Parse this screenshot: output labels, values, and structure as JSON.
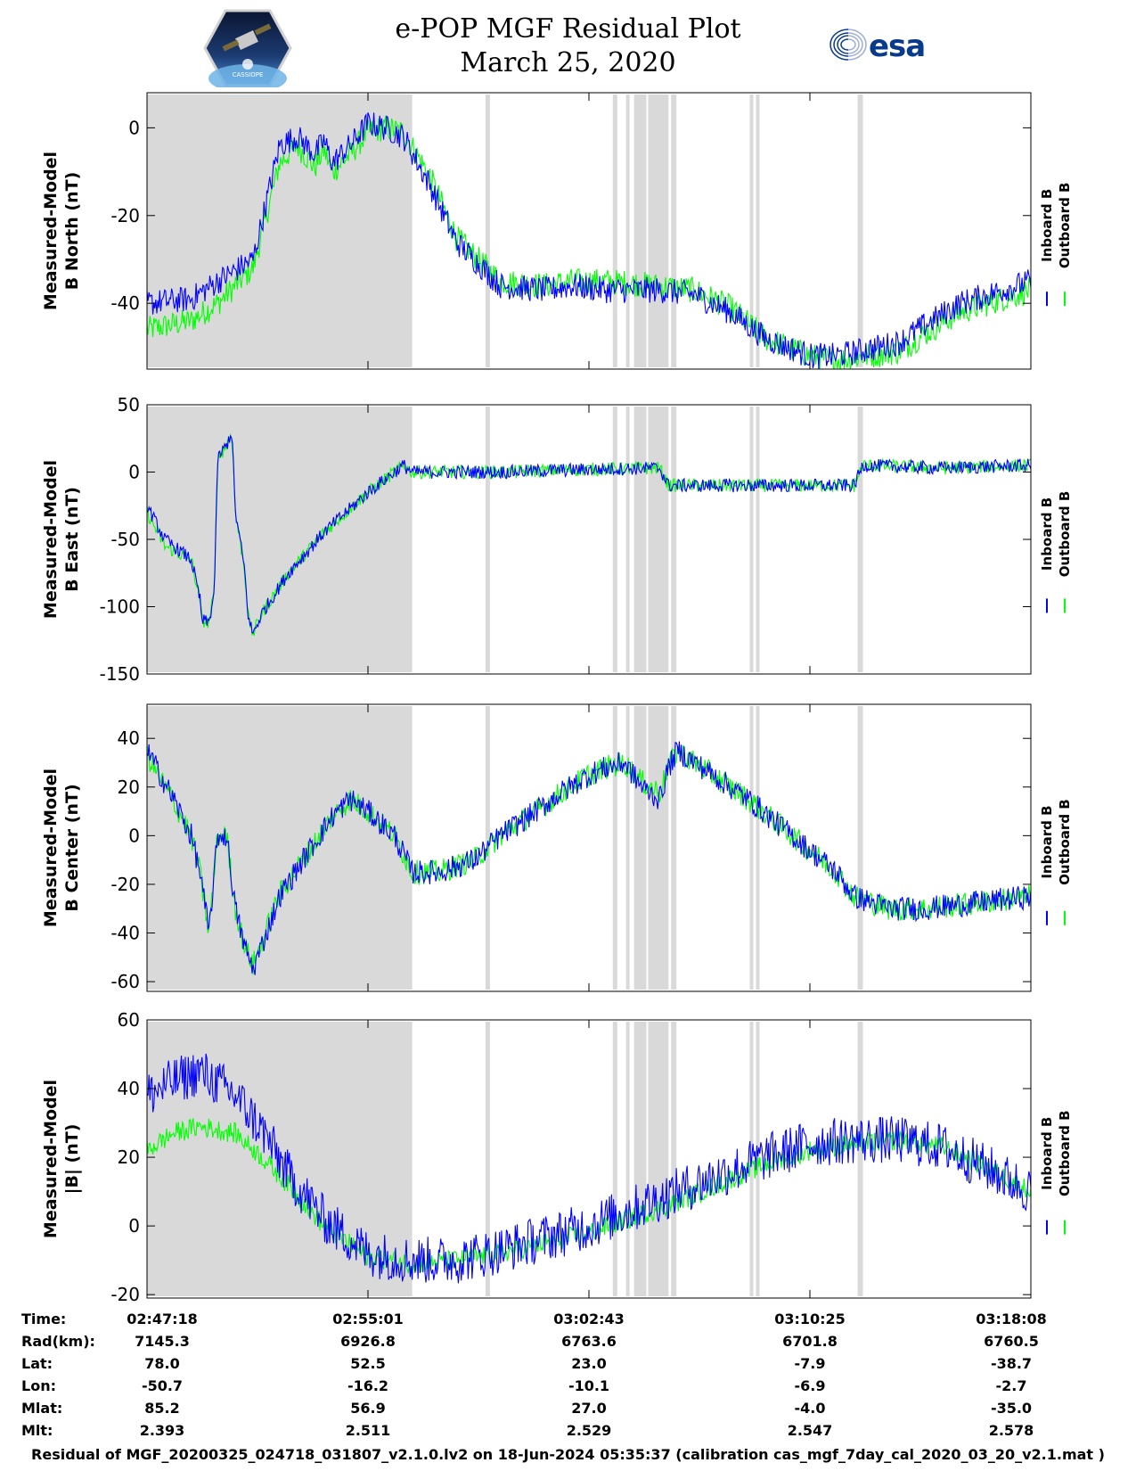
{
  "header": {
    "title_line1": "e-POP MGF Residual Plot",
    "title_line2": "March 25, 2020",
    "left_logo_text": "CASSIOPE",
    "right_logo_text": "esa",
    "right_logo_icon": "e-swirl-icon"
  },
  "colors": {
    "inboard": "#0000ff",
    "outboard": "#00ff00",
    "gap_shade": "#d9d9d9"
  },
  "chart_data": [
    {
      "type": "line",
      "title": "",
      "ylabel_line1": "Measured-Model",
      "ylabel_line2": "B North (nT)",
      "ylim": [
        -55,
        8
      ],
      "yticks": [
        0,
        -20,
        -40
      ],
      "ytick_labels": [
        "0",
        "-20",
        "-40"
      ],
      "legend": [
        "Inboard B",
        "Outboard B"
      ],
      "series": [
        {
          "name": "Inboard B",
          "x": [
            0,
            5,
            8,
            12,
            15,
            17,
            19,
            20,
            21,
            23,
            25,
            27,
            29,
            32,
            35,
            40,
            45,
            48,
            52,
            58,
            62,
            66,
            70,
            75,
            78,
            85,
            88,
            92,
            100
          ],
          "values": [
            -40,
            -39,
            -35,
            -30,
            -4,
            -2,
            -6,
            -3,
            -8,
            -4,
            1,
            0,
            -2,
            -13,
            -26,
            -36,
            -37,
            -36,
            -37,
            -37,
            -38,
            -42,
            -48,
            -52,
            -52,
            -49,
            -45,
            -40,
            -35
          ],
          "noise": 3
        },
        {
          "name": "Outboard B",
          "x": [
            0,
            5,
            8,
            12,
            15,
            17,
            19,
            20,
            21,
            23,
            25,
            27,
            29,
            32,
            35,
            40,
            45,
            48,
            52,
            58,
            62,
            66,
            70,
            75,
            78,
            85,
            88,
            92,
            100
          ],
          "values": [
            -46,
            -44,
            -40,
            -32,
            -8,
            -4,
            -9,
            -5,
            -10,
            -6,
            -1,
            0,
            -1,
            -11,
            -25,
            -35,
            -36,
            -35,
            -35,
            -36,
            -37,
            -41,
            -48,
            -52,
            -53,
            -51,
            -47,
            -42,
            -37
          ],
          "noise": 3
        }
      ]
    },
    {
      "type": "line",
      "title": "",
      "ylabel_line1": "Measured-Model",
      "ylabel_line2": "B East (nT)",
      "ylim": [
        -150,
        50
      ],
      "yticks": [
        50,
        0,
        -50,
        -100,
        -150
      ],
      "ytick_labels": [
        "50",
        "0",
        "-50",
        "-100",
        "-150"
      ],
      "legend": [
        "Inboard B",
        "Outboard B"
      ],
      "series": [
        {
          "name": "Inboard B",
          "x": [
            0,
            2,
            4,
            5,
            6,
            6.2,
            7,
            7.6,
            8,
            9,
            9.6,
            10,
            11,
            11.5,
            12,
            13,
            16,
            20,
            25,
            29,
            30,
            35,
            40,
            50,
            58,
            59,
            61,
            70,
            80,
            81,
            90,
            100
          ],
          "values": [
            -25,
            -50,
            -60,
            -65,
            -95,
            -110,
            -112,
            -90,
            10,
            20,
            30,
            -30,
            -70,
            -110,
            -120,
            -105,
            -75,
            -45,
            -15,
            5,
            0,
            0,
            0,
            2,
            3,
            -10,
            -10,
            -10,
            -10,
            5,
            3,
            5
          ],
          "noise": 5
        },
        {
          "name": "Outboard B",
          "x": [
            0,
            2,
            4,
            5,
            6,
            6.2,
            7,
            7.6,
            8,
            9,
            9.6,
            10,
            11,
            11.5,
            12,
            13,
            16,
            20,
            25,
            29,
            30,
            35,
            40,
            50,
            58,
            59,
            61,
            70,
            80,
            81,
            90,
            100
          ],
          "values": [
            -30,
            -55,
            -62,
            -65,
            -95,
            -110,
            -112,
            -90,
            10,
            20,
            30,
            -30,
            -70,
            -110,
            -120,
            -105,
            -75,
            -45,
            -15,
            5,
            0,
            0,
            0,
            2,
            3,
            -10,
            -10,
            -10,
            -10,
            5,
            3,
            5
          ],
          "noise": 5
        }
      ]
    },
    {
      "type": "line",
      "title": "",
      "ylabel_line1": "Measured-Model",
      "ylabel_line2": "B Center (nT)",
      "ylim": [
        -64,
        54
      ],
      "yticks": [
        40,
        20,
        0,
        -20,
        -40,
        -60
      ],
      "ytick_labels": [
        "40",
        "20",
        "0",
        "-20",
        "-40",
        "-60"
      ],
      "legend": [
        "Inboard B",
        "Outboard B"
      ],
      "series": [
        {
          "name": "Inboard B",
          "x": [
            0,
            3,
            5,
            6,
            7,
            8,
            9,
            10,
            11,
            12,
            13,
            15,
            18,
            21,
            23,
            25,
            28,
            30,
            33,
            37,
            40,
            44,
            47,
            50,
            52,
            54,
            56,
            58,
            59,
            60,
            62,
            68,
            73,
            78,
            80,
            84,
            88,
            93,
            100
          ],
          "values": [
            35,
            15,
            0,
            -15,
            -40,
            0,
            0,
            -30,
            -45,
            -55,
            -45,
            -25,
            -8,
            8,
            15,
            10,
            0,
            -15,
            -15,
            -10,
            0,
            10,
            18,
            25,
            28,
            30,
            20,
            15,
            28,
            35,
            30,
            15,
            0,
            -15,
            -25,
            -30,
            -30,
            -28,
            -25
          ],
          "noise": 5
        },
        {
          "name": "Outboard B",
          "x": [
            0,
            3,
            5,
            6,
            7,
            8,
            9,
            10,
            11,
            12,
            13,
            15,
            18,
            21,
            23,
            25,
            28,
            30,
            33,
            37,
            40,
            44,
            47,
            50,
            52,
            54,
            56,
            58,
            59,
            60,
            62,
            68,
            73,
            78,
            80,
            84,
            88,
            93,
            100
          ],
          "values": [
            33,
            14,
            0,
            -15,
            -40,
            0,
            0,
            -30,
            -45,
            -53,
            -44,
            -24,
            -8,
            8,
            15,
            10,
            0,
            -15,
            -15,
            -10,
            0,
            10,
            18,
            25,
            28,
            30,
            22,
            18,
            28,
            35,
            30,
            15,
            0,
            -15,
            -25,
            -30,
            -30,
            -28,
            -25
          ],
          "noise": 5
        }
      ]
    },
    {
      "type": "line",
      "title": "",
      "ylabel_line1": "Measured-Model",
      "ylabel_line2": "|B| (nT)",
      "ylim": [
        -21,
        60
      ],
      "yticks": [
        60,
        40,
        20,
        0,
        -20
      ],
      "ytick_labels": [
        "60",
        "40",
        "20",
        "0",
        "-20"
      ],
      "legend": [
        "Inboard B",
        "Outboard B"
      ],
      "series": [
        {
          "name": "Inboard B",
          "x": [
            0,
            3,
            6,
            10,
            13,
            16,
            20,
            25,
            30,
            35,
            40,
            50,
            60,
            70,
            75,
            80,
            85,
            90,
            95,
            100
          ],
          "values": [
            38,
            42,
            45,
            38,
            28,
            15,
            2,
            -8,
            -10,
            -10,
            -7,
            0,
            10,
            20,
            24,
            25,
            25,
            23,
            17,
            10
          ],
          "noise": 7
        },
        {
          "name": "Outboard B",
          "x": [
            0,
            3,
            6,
            10,
            13,
            16,
            20,
            25,
            30,
            35,
            40,
            50,
            60,
            70,
            75,
            80,
            85,
            90,
            95,
            100
          ],
          "values": [
            22,
            27,
            29,
            27,
            20,
            12,
            0,
            -9,
            -11,
            -10,
            -8,
            -2,
            7,
            18,
            22,
            24,
            25,
            23,
            17,
            10
          ],
          "noise": 3
        }
      ]
    }
  ],
  "gap_bands_percent": [
    [
      0,
      30
    ],
    [
      38.3,
      38.8
    ],
    [
      52.7,
      53.2
    ],
    [
      54.2,
      54.6
    ],
    [
      55.1,
      56.5
    ],
    [
      56.7,
      59.0
    ],
    [
      59.3,
      59.9
    ],
    [
      68.2,
      68.6
    ],
    [
      68.9,
      69.3
    ],
    [
      80.4,
      81.0
    ]
  ],
  "ephemeris": {
    "labels": [
      "Time:",
      "Rad(km):",
      "Lat:",
      "Lon:",
      "Mlat:",
      "Mlt:"
    ],
    "columns": [
      [
        "02:47:18",
        "7145.3",
        "78.0",
        "-50.7",
        "85.2",
        "2.393"
      ],
      [
        "02:55:01",
        "6926.8",
        "52.5",
        "-16.2",
        "56.9",
        "2.511"
      ],
      [
        "03:02:43",
        "6763.6",
        "23.0",
        "-10.1",
        "27.0",
        "2.529"
      ],
      [
        "03:10:25",
        "6701.8",
        "-7.9",
        "-6.9",
        "-4.0",
        "2.547"
      ],
      [
        "03:18:08",
        "6760.5",
        "-38.7",
        "-2.7",
        "-35.0",
        "2.578"
      ]
    ]
  },
  "footer": "Residual of MGF_20200325_024718_031807_v2.1.0.lv2 on 18-Jun-2024 05:35:37 (calibration cas_mgf_7day_cal_2020_03_20_v2.1.mat )"
}
